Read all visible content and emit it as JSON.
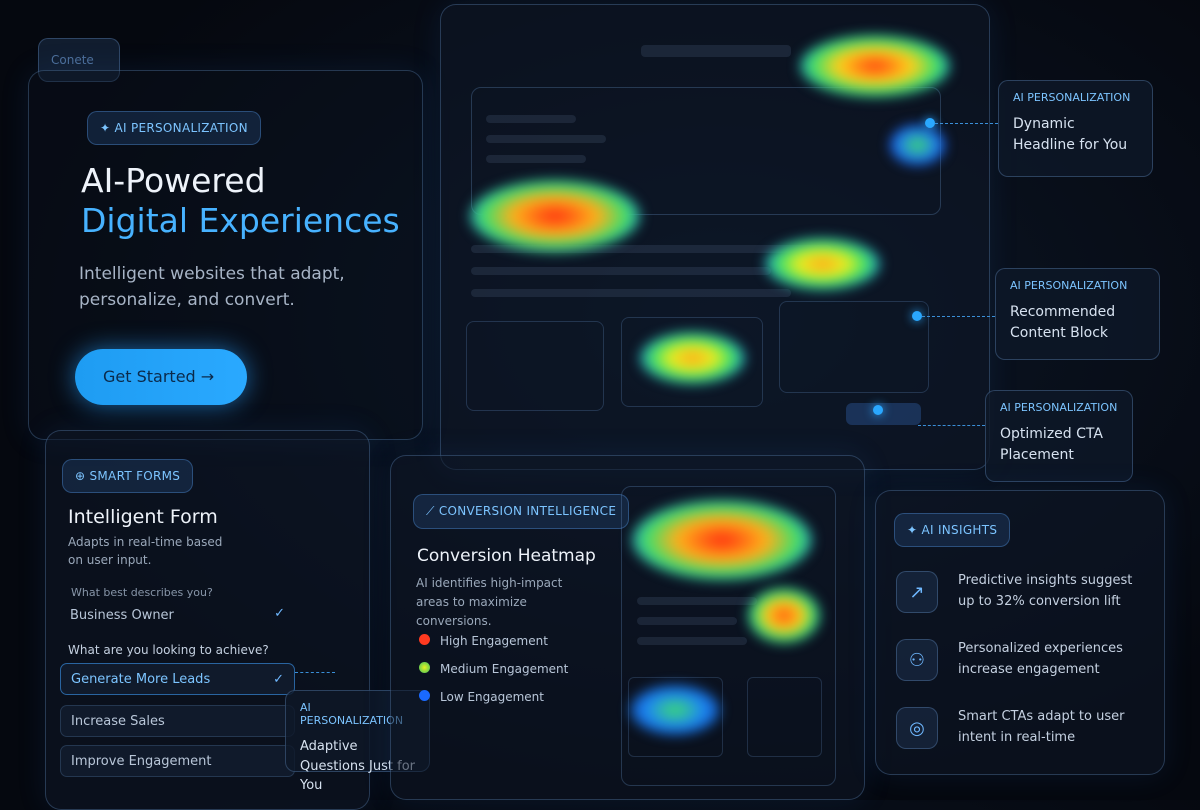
{
  "tab": "Conete",
  "hero": {
    "badge": "AI PERSONALIZATION",
    "title_line1": "AI-Powered",
    "title_line2": "Digital Experiences",
    "subtitle": "Intelligent websites that adapt, personalize, and convert.",
    "button": "Get Started"
  },
  "callouts": [
    {
      "label": "AI PERSONALIZATION",
      "text": "Dynamic Headline for You"
    },
    {
      "label": "AI PERSONALIZATION",
      "text": "Recommended Content Block"
    },
    {
      "label": "AI PERSONALIZATION",
      "text": "Optimized CTA Placement"
    },
    {
      "label": "AI PERSONALIZATION",
      "text": "Adaptive Questions Just for You"
    }
  ],
  "smart_forms": {
    "badge": "SMART FORMS",
    "title": "Intelligent Form",
    "description": "Adapts in real-time based on user input.",
    "question1": "What best describes you?",
    "answer1": "Business Owner",
    "question2": "What are you looking to achieve?",
    "options": [
      "Generate More Leads",
      "Increase Sales",
      "Improve Engagement"
    ]
  },
  "conversion": {
    "badge": "CONVERSION INTELLIGENCE",
    "title": "Conversion Heatmap",
    "description": "AI identifies high-impact areas to maximize conversions.",
    "legend": [
      "High Engagement",
      "Medium Engagement",
      "Low Engagement"
    ]
  },
  "insights": {
    "badge": "AI INSIGHTS",
    "items": [
      "Predictive insights suggest up to 32% conversion lift",
      "Personalized experiences increase engagement",
      "Smart CTAs adapt to user intent in real-time"
    ]
  }
}
